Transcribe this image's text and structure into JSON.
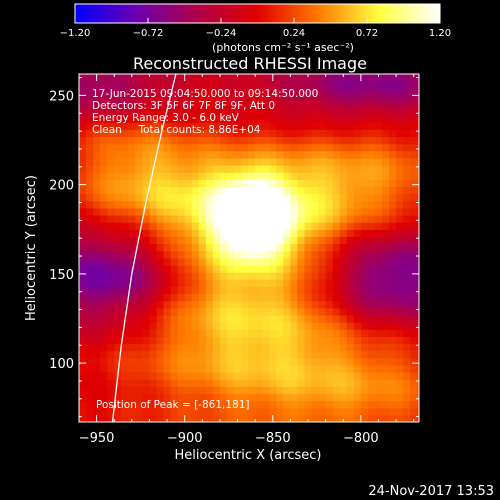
{
  "chart_data": {
    "type": "heatmap",
    "title": "Reconstructed RHESSI Image",
    "xlabel": "Heliocentric X (arcsec)",
    "ylabel": "Heliocentric Y (arcsec)",
    "xlim": [
      -960,
      -767
    ],
    "ylim": [
      67,
      262
    ],
    "x_ticks": [
      -950,
      -900,
      -850,
      -800
    ],
    "y_ticks": [
      100,
      150,
      200,
      250
    ],
    "x_tick_labels": [
      "−950",
      "−900",
      "−850",
      "−800"
    ],
    "y_tick_labels": [
      "100",
      "150",
      "200",
      "250"
    ],
    "colorbar": {
      "range": [
        -1.2,
        1.2
      ],
      "ticks": [
        -1.2,
        -0.72,
        -0.24,
        0.24,
        0.72,
        1.2
      ],
      "tick_labels": [
        "−1.20",
        "−0.72",
        "−0.24",
        "0.24",
        "0.72",
        "1.20"
      ],
      "unit_label": "(photons cm⁻² s⁻¹ asec⁻²)",
      "colormap": [
        "#0000ff",
        "#6a00b0",
        "#b00048",
        "#e00000",
        "#ff7a00",
        "#ffff40",
        "#ffffff"
      ]
    },
    "annotations": [
      "17-Jun-2015 09:04:50.000 to 09:14:50.000",
      "Detectors: 3F 5F 6F 7F 8F 9F, Att 0",
      "Energy Range: 3.0 - 6.0 keV",
      "Clean     Total counts: 8.86E+04"
    ],
    "peak_label": "Position of Peak = [-861,181]",
    "peak": [
      -861,
      181
    ],
    "limb_curve": [
      [
        -941,
        67
      ],
      [
        -936,
        110
      ],
      [
        -930,
        150
      ],
      [
        -922,
        190
      ],
      [
        -913,
        230
      ],
      [
        -905,
        262
      ]
    ],
    "pixel_size_arcsec": 4
  },
  "footer": {
    "date": "24-Nov-2017 13:53"
  }
}
